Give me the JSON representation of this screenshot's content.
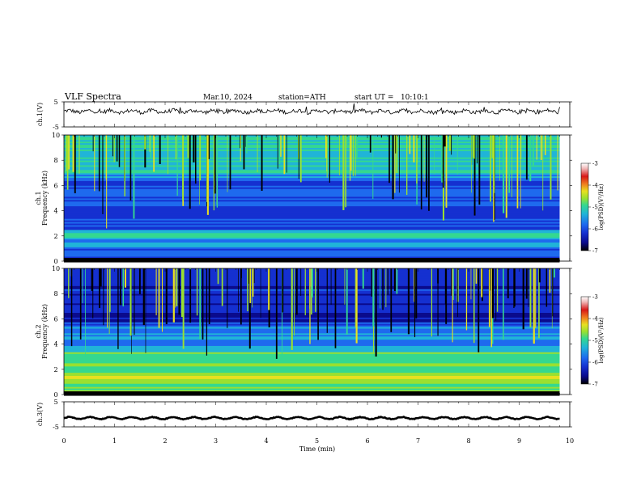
{
  "header": {
    "title": "VLF Spectra",
    "date": "Mar.10, 2024",
    "station": "station=ATH",
    "start": "start UT =   10:10:1"
  },
  "chart_data": [
    {
      "type": "line",
      "panel": "ch1-waveform",
      "ylabel": "ch.1(V)",
      "yticks": [
        "5",
        "-5"
      ],
      "ylim": [
        -5,
        5
      ]
    },
    {
      "type": "heatmap",
      "panel": "ch1-spectrogram",
      "ylabel_top": "ch.1",
      "ylabel": "Frequency (kHz)",
      "yticks": [
        "0",
        "2",
        "4",
        "6",
        "8",
        "10"
      ],
      "ylim": [
        0,
        10
      ],
      "colorbar": {
        "label": "log(PSD)(V²/Hz)",
        "ticks": [
          "-3",
          "-4",
          "-5",
          "-6",
          "-7"
        ],
        "range": [
          -7,
          -3
        ]
      }
    },
    {
      "type": "heatmap",
      "panel": "ch2-spectrogram",
      "ylabel_top": "ch.2",
      "ylabel": "Frequency (kHz)",
      "yticks": [
        "0",
        "2",
        "4",
        "6",
        "8",
        "10"
      ],
      "ylim": [
        0,
        10
      ],
      "colorbar": {
        "label": "log(PSD)(V²/Hz)",
        "ticks": [
          "-3",
          "-4",
          "-5",
          "-6",
          "-7"
        ],
        "range": [
          -7,
          -3
        ]
      }
    },
    {
      "type": "line",
      "panel": "ch3-waveform",
      "ylabel": "ch.3(V)",
      "yticks": [
        "5",
        "-5"
      ],
      "ylim": [
        -5,
        5
      ]
    }
  ],
  "xaxis": {
    "label": "Time (min)",
    "ticks": [
      "0",
      "1",
      "2",
      "3",
      "4",
      "5",
      "6",
      "7",
      "8",
      "9",
      "10"
    ],
    "range": [
      0,
      10
    ],
    "data_end": 9.8
  },
  "colors": {
    "cmap": [
      "#000000",
      "#0a0a8c",
      "#1530d0",
      "#1e6aee",
      "#20b4d8",
      "#34d890",
      "#9ae030",
      "#e8e020",
      "#f08020",
      "#d81818",
      "#f0b8b8",
      "#ffffff"
    ]
  }
}
